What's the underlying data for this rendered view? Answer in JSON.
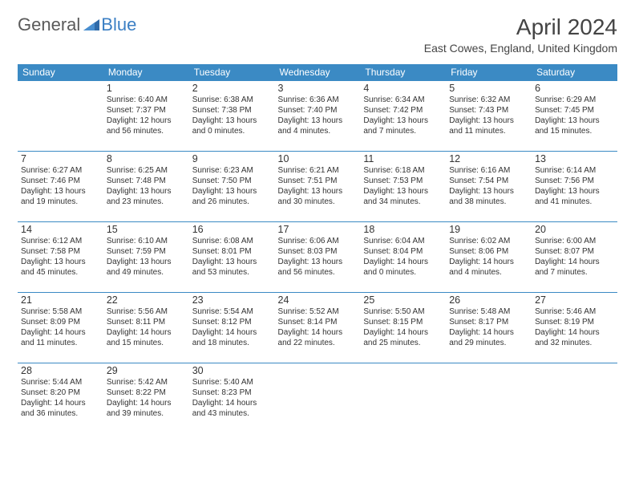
{
  "brand": {
    "general": "General",
    "blue": "Blue"
  },
  "title": "April 2024",
  "location": "East Cowes, England, United Kingdom",
  "colors": {
    "header_bg": "#3b8ac4",
    "header_text": "#ffffff",
    "border": "#3b8ac4",
    "logo_blue": "#3b7fc4",
    "logo_gray": "#5a5a5a",
    "text": "#333333"
  },
  "day_headers": [
    "Sunday",
    "Monday",
    "Tuesday",
    "Wednesday",
    "Thursday",
    "Friday",
    "Saturday"
  ],
  "weeks": [
    [
      null,
      {
        "n": "1",
        "sr": "Sunrise: 6:40 AM",
        "ss": "Sunset: 7:37 PM",
        "d1": "Daylight: 12 hours",
        "d2": "and 56 minutes."
      },
      {
        "n": "2",
        "sr": "Sunrise: 6:38 AM",
        "ss": "Sunset: 7:38 PM",
        "d1": "Daylight: 13 hours",
        "d2": "and 0 minutes."
      },
      {
        "n": "3",
        "sr": "Sunrise: 6:36 AM",
        "ss": "Sunset: 7:40 PM",
        "d1": "Daylight: 13 hours",
        "d2": "and 4 minutes."
      },
      {
        "n": "4",
        "sr": "Sunrise: 6:34 AM",
        "ss": "Sunset: 7:42 PM",
        "d1": "Daylight: 13 hours",
        "d2": "and 7 minutes."
      },
      {
        "n": "5",
        "sr": "Sunrise: 6:32 AM",
        "ss": "Sunset: 7:43 PM",
        "d1": "Daylight: 13 hours",
        "d2": "and 11 minutes."
      },
      {
        "n": "6",
        "sr": "Sunrise: 6:29 AM",
        "ss": "Sunset: 7:45 PM",
        "d1": "Daylight: 13 hours",
        "d2": "and 15 minutes."
      }
    ],
    [
      {
        "n": "7",
        "sr": "Sunrise: 6:27 AM",
        "ss": "Sunset: 7:46 PM",
        "d1": "Daylight: 13 hours",
        "d2": "and 19 minutes."
      },
      {
        "n": "8",
        "sr": "Sunrise: 6:25 AM",
        "ss": "Sunset: 7:48 PM",
        "d1": "Daylight: 13 hours",
        "d2": "and 23 minutes."
      },
      {
        "n": "9",
        "sr": "Sunrise: 6:23 AM",
        "ss": "Sunset: 7:50 PM",
        "d1": "Daylight: 13 hours",
        "d2": "and 26 minutes."
      },
      {
        "n": "10",
        "sr": "Sunrise: 6:21 AM",
        "ss": "Sunset: 7:51 PM",
        "d1": "Daylight: 13 hours",
        "d2": "and 30 minutes."
      },
      {
        "n": "11",
        "sr": "Sunrise: 6:18 AM",
        "ss": "Sunset: 7:53 PM",
        "d1": "Daylight: 13 hours",
        "d2": "and 34 minutes."
      },
      {
        "n": "12",
        "sr": "Sunrise: 6:16 AM",
        "ss": "Sunset: 7:54 PM",
        "d1": "Daylight: 13 hours",
        "d2": "and 38 minutes."
      },
      {
        "n": "13",
        "sr": "Sunrise: 6:14 AM",
        "ss": "Sunset: 7:56 PM",
        "d1": "Daylight: 13 hours",
        "d2": "and 41 minutes."
      }
    ],
    [
      {
        "n": "14",
        "sr": "Sunrise: 6:12 AM",
        "ss": "Sunset: 7:58 PM",
        "d1": "Daylight: 13 hours",
        "d2": "and 45 minutes."
      },
      {
        "n": "15",
        "sr": "Sunrise: 6:10 AM",
        "ss": "Sunset: 7:59 PM",
        "d1": "Daylight: 13 hours",
        "d2": "and 49 minutes."
      },
      {
        "n": "16",
        "sr": "Sunrise: 6:08 AM",
        "ss": "Sunset: 8:01 PM",
        "d1": "Daylight: 13 hours",
        "d2": "and 53 minutes."
      },
      {
        "n": "17",
        "sr": "Sunrise: 6:06 AM",
        "ss": "Sunset: 8:03 PM",
        "d1": "Daylight: 13 hours",
        "d2": "and 56 minutes."
      },
      {
        "n": "18",
        "sr": "Sunrise: 6:04 AM",
        "ss": "Sunset: 8:04 PM",
        "d1": "Daylight: 14 hours",
        "d2": "and 0 minutes."
      },
      {
        "n": "19",
        "sr": "Sunrise: 6:02 AM",
        "ss": "Sunset: 8:06 PM",
        "d1": "Daylight: 14 hours",
        "d2": "and 4 minutes."
      },
      {
        "n": "20",
        "sr": "Sunrise: 6:00 AM",
        "ss": "Sunset: 8:07 PM",
        "d1": "Daylight: 14 hours",
        "d2": "and 7 minutes."
      }
    ],
    [
      {
        "n": "21",
        "sr": "Sunrise: 5:58 AM",
        "ss": "Sunset: 8:09 PM",
        "d1": "Daylight: 14 hours",
        "d2": "and 11 minutes."
      },
      {
        "n": "22",
        "sr": "Sunrise: 5:56 AM",
        "ss": "Sunset: 8:11 PM",
        "d1": "Daylight: 14 hours",
        "d2": "and 15 minutes."
      },
      {
        "n": "23",
        "sr": "Sunrise: 5:54 AM",
        "ss": "Sunset: 8:12 PM",
        "d1": "Daylight: 14 hours",
        "d2": "and 18 minutes."
      },
      {
        "n": "24",
        "sr": "Sunrise: 5:52 AM",
        "ss": "Sunset: 8:14 PM",
        "d1": "Daylight: 14 hours",
        "d2": "and 22 minutes."
      },
      {
        "n": "25",
        "sr": "Sunrise: 5:50 AM",
        "ss": "Sunset: 8:15 PM",
        "d1": "Daylight: 14 hours",
        "d2": "and 25 minutes."
      },
      {
        "n": "26",
        "sr": "Sunrise: 5:48 AM",
        "ss": "Sunset: 8:17 PM",
        "d1": "Daylight: 14 hours",
        "d2": "and 29 minutes."
      },
      {
        "n": "27",
        "sr": "Sunrise: 5:46 AM",
        "ss": "Sunset: 8:19 PM",
        "d1": "Daylight: 14 hours",
        "d2": "and 32 minutes."
      }
    ],
    [
      {
        "n": "28",
        "sr": "Sunrise: 5:44 AM",
        "ss": "Sunset: 8:20 PM",
        "d1": "Daylight: 14 hours",
        "d2": "and 36 minutes."
      },
      {
        "n": "29",
        "sr": "Sunrise: 5:42 AM",
        "ss": "Sunset: 8:22 PM",
        "d1": "Daylight: 14 hours",
        "d2": "and 39 minutes."
      },
      {
        "n": "30",
        "sr": "Sunrise: 5:40 AM",
        "ss": "Sunset: 8:23 PM",
        "d1": "Daylight: 14 hours",
        "d2": "and 43 minutes."
      },
      null,
      null,
      null,
      null
    ]
  ]
}
